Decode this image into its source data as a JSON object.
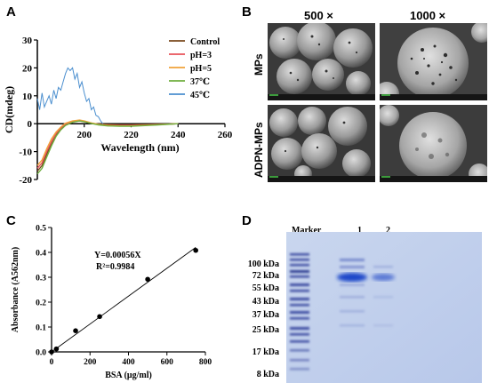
{
  "panels": {
    "a": {
      "label": "A"
    },
    "b": {
      "label": "B",
      "col_labels": [
        "500 ×",
        "1000 ×"
      ],
      "row_labels": [
        "MPs",
        "ADPN-MPs"
      ]
    },
    "c": {
      "label": "C"
    },
    "d": {
      "label": "D",
      "lane_labels": [
        "Marker",
        "1",
        "2"
      ],
      "marker_labels": [
        "100 kDa",
        "72 kDa",
        "55 kDa",
        "43 kDa",
        "37 kDa",
        "25 kDa",
        "17 kDa",
        "8 kDa"
      ]
    }
  },
  "chart_data": [
    {
      "panel": "A",
      "type": "line",
      "xlabel": "Wavelength (nm)",
      "ylabel": "CD(mdeg)",
      "xlim": [
        180,
        260
      ],
      "ylim": [
        -20,
        30
      ],
      "xticks": [
        200,
        220,
        240,
        260
      ],
      "yticks": [
        -20,
        -10,
        0,
        10,
        20,
        30
      ],
      "legend_position": "right",
      "series": [
        {
          "name": "Control",
          "color": "#7a4a1e",
          "x": [
            180,
            182,
            184,
            186,
            188,
            190,
            192,
            195,
            198,
            200,
            203,
            206,
            210,
            215,
            220,
            225,
            230,
            235,
            240
          ],
          "y": [
            -17,
            -15,
            -11,
            -7,
            -4,
            -2,
            -0.3,
            0.8,
            1.2,
            0.8,
            0.2,
            -0.2,
            -0.3,
            -0.35,
            -0.35,
            -0.3,
            -0.25,
            -0.15,
            0
          ]
        },
        {
          "name": "pH=3",
          "color": "#e8535a",
          "x": [
            180,
            182,
            184,
            186,
            188,
            190,
            192,
            195,
            198,
            200,
            203,
            206,
            210,
            215,
            220,
            225,
            230,
            235,
            240
          ],
          "y": [
            -16,
            -14,
            -10,
            -6.5,
            -3.5,
            -1.5,
            0,
            0.7,
            1,
            0.7,
            0.2,
            -0.3,
            -0.5,
            -0.6,
            -0.6,
            -0.5,
            -0.35,
            -0.2,
            0
          ]
        },
        {
          "name": "pH=5",
          "color": "#f1a23a",
          "x": [
            180,
            182,
            184,
            186,
            188,
            190,
            192,
            195,
            198,
            200,
            203,
            206,
            210,
            215,
            220,
            225,
            230,
            235,
            240
          ],
          "y": [
            -15,
            -13,
            -9,
            -5.5,
            -3,
            -1.2,
            0.2,
            1,
            1.3,
            1,
            0.3,
            -0.2,
            -0.6,
            -0.8,
            -0.8,
            -0.6,
            -0.4,
            -0.2,
            0
          ]
        },
        {
          "name": "37℃",
          "color": "#6fae3e",
          "x": [
            180,
            182,
            184,
            186,
            188,
            190,
            192,
            195,
            198,
            200,
            203,
            206,
            210,
            215,
            220,
            225,
            230,
            235,
            240
          ],
          "y": [
            -18,
            -16,
            -12,
            -8,
            -4.5,
            -2.2,
            -0.6,
            0.5,
            1,
            0.7,
            0.1,
            -0.4,
            -0.8,
            -0.9,
            -0.9,
            -0.7,
            -0.5,
            -0.25,
            0
          ]
        },
        {
          "name": "45℃",
          "color": "#4b8fcf",
          "x": [
            180,
            181,
            182,
            183,
            184,
            185,
            186,
            187,
            188,
            189,
            190,
            191,
            192,
            193,
            194,
            195,
            196,
            197,
            198,
            199,
            200,
            201,
            202,
            203,
            204,
            205,
            206,
            207,
            208
          ],
          "y": [
            9,
            5,
            11,
            6,
            8,
            10,
            7,
            12,
            9,
            13,
            12,
            15,
            18,
            20,
            19,
            20,
            16,
            18,
            13,
            15,
            11,
            8,
            9,
            5,
            6,
            3,
            2.5,
            1,
            0
          ]
        }
      ]
    },
    {
      "panel": "C",
      "type": "scatter",
      "xlabel": "BSA (μg/ml)",
      "ylabel": "Absorbance (A562nm)",
      "xlim": [
        0,
        800
      ],
      "ylim": [
        0,
        0.5
      ],
      "xticks": [
        0,
        200,
        400,
        600,
        800
      ],
      "yticks": [
        0.0,
        0.1,
        0.2,
        0.3,
        0.4,
        0.5
      ],
      "equation": "Y=0.00056X",
      "r2": "R²=0.9984",
      "points": {
        "x": [
          0,
          25,
          125,
          250,
          500,
          750
        ],
        "y": [
          0,
          0.012,
          0.085,
          0.142,
          0.292,
          0.408
        ]
      },
      "fit": {
        "x": [
          0,
          750
        ],
        "y": [
          0,
          0.42
        ]
      }
    }
  ]
}
